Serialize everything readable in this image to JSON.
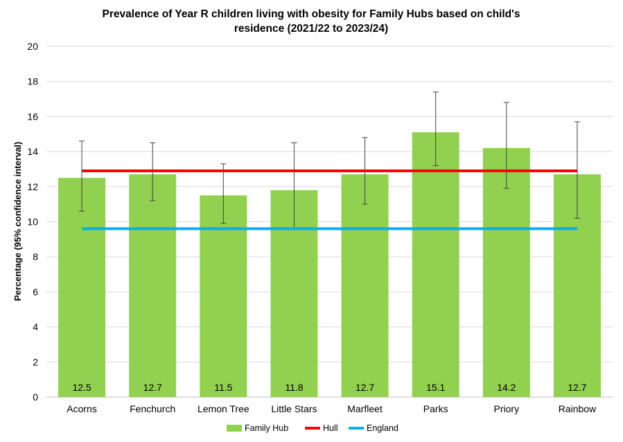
{
  "chart_data": {
    "type": "bar",
    "title_lines": [
      "Prevalence of Year R children living with obesity for Family Hubs based on child's",
      "residence (2021/22 to 2023/24)"
    ],
    "xlabel": "",
    "ylabel": "Percentage (95% confidence interval)",
    "ylim": [
      0,
      20
    ],
    "yticks": [
      0,
      2,
      4,
      6,
      8,
      10,
      12,
      14,
      16,
      18,
      20
    ],
    "grid": true,
    "legend_position": "bottom",
    "categories": [
      "Acorns",
      "Fenchurch",
      "Lemon Tree",
      "Little Stars",
      "Marfleet",
      "Parks",
      "Priory",
      "Rainbow"
    ],
    "series": [
      {
        "name": "Family Hub",
        "type": "bar",
        "color": "#92d050",
        "values": [
          12.5,
          12.7,
          11.5,
          11.8,
          12.7,
          15.1,
          14.2,
          12.7
        ],
        "labels": [
          "12.5",
          "12.7",
          "11.5",
          "11.8",
          "12.7",
          "15.1",
          "14.2",
          "12.7"
        ],
        "ci_lower": [
          10.6,
          11.2,
          9.9,
          9.6,
          11.0,
          13.2,
          11.9,
          10.2
        ],
        "ci_upper": [
          14.6,
          14.5,
          13.3,
          14.5,
          14.8,
          17.4,
          16.8,
          15.7
        ]
      },
      {
        "name": "Hull",
        "type": "line",
        "color": "#ff0000",
        "value": 12.9
      },
      {
        "name": "England",
        "type": "line",
        "color": "#00b0f0",
        "value": 9.6
      }
    ]
  }
}
